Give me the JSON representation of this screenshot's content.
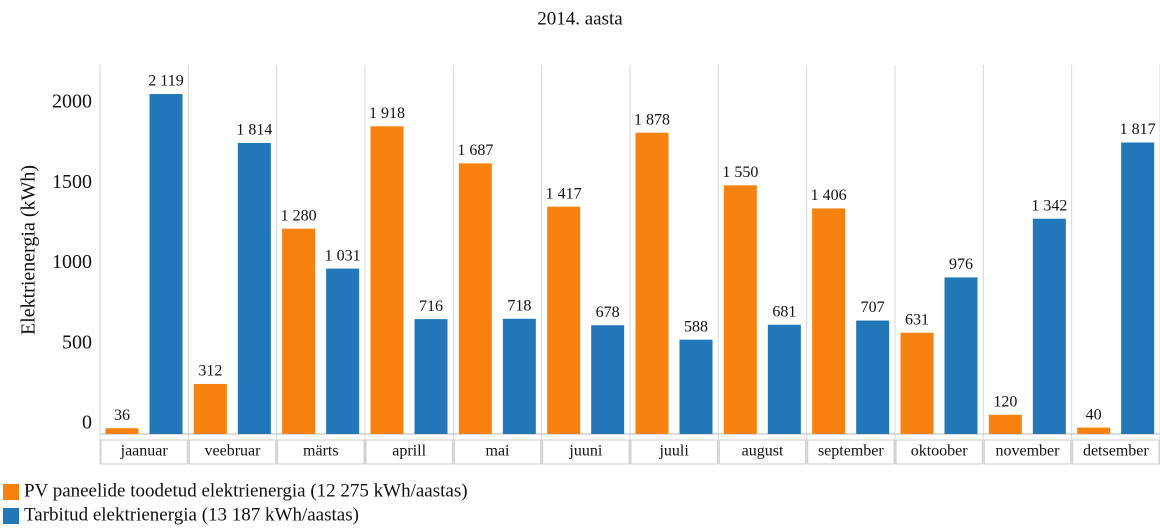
{
  "chart_data": {
    "type": "bar",
    "title": "2014. aasta",
    "y_label": "Elektrienergia (kWh)",
    "categories": [
      "jaanuar",
      "veebruar",
      "märts",
      "aprill",
      "mai",
      "juuni",
      "juuli",
      "august",
      "september",
      "oktoober",
      "november",
      "detsember"
    ],
    "series": [
      {
        "name": "PV paneelide toodetud elektrienergia (12 275 kWh/aastas)",
        "color": "#f7820f",
        "values": [
          36,
          312,
          1280,
          1918,
          1687,
          1417,
          1878,
          1550,
          1406,
          631,
          120,
          40
        ],
        "value_labels": [
          "36",
          "312",
          "1 280",
          "1 918",
          "1 687",
          "1 417",
          "1 878",
          "1 550",
          "1 406",
          "631",
          "120",
          "40"
        ]
      },
      {
        "name": "Tarbitud elektrienergia (13 187 kWh/aastas)",
        "color": "#2277b8",
        "values": [
          2119,
          1814,
          1031,
          716,
          718,
          678,
          588,
          681,
          707,
          976,
          1342,
          1817
        ],
        "value_labels": [
          "2 119",
          "1 814",
          "1 031",
          "716",
          "718",
          "678",
          "588",
          "681",
          "707",
          "976",
          "1 342",
          "1 817"
        ]
      }
    ],
    "ylim": [
      0,
      2300
    ],
    "yticks": [
      0,
      500,
      1000,
      1500,
      2000
    ],
    "legend": "bottom-left"
  }
}
